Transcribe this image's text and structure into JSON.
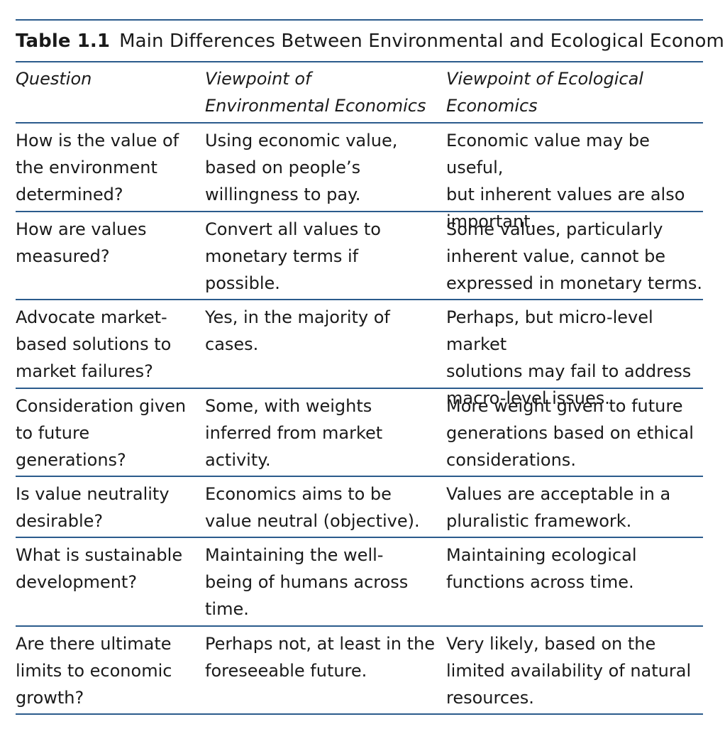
{
  "table": {
    "label": "Table 1.1",
    "title": "Main Differences Between Environmental and Ecological Economics",
    "headers": [
      "Question",
      "Viewpoint of\nEnvironmental Economics",
      "Viewpoint of Ecological\nEconomics"
    ],
    "rows": [
      {
        "question": "How is the value of\nthe environment\ndetermined?",
        "environmental": "Using economic value,\nbased on people’s\nwillingness to pay.",
        "ecological": "Economic value may be useful,\nbut inherent values are also\nimportant."
      },
      {
        "question": "How are values\nmeasured?",
        "environmental": "Convert all values to\nmonetary terms if\npossible.",
        "ecological": "Some values, particularly\ninherent value, cannot be\nexpressed in monetary terms."
      },
      {
        "question": "Advocate market-\nbased solutions to\nmarket failures?",
        "environmental": "Yes, in the majority of\ncases.",
        "ecological": "Perhaps, but micro-level market\nsolutions may fail to address\nmacro-level issues."
      },
      {
        "question": "Consideration given\nto future\ngenerations?",
        "environmental": "Some, with weights\ninferred from market\nactivity.",
        "ecological": "More weight given to future\ngenerations based on ethical\nconsiderations."
      },
      {
        "question": "Is value neutrality\ndesirable?",
        "environmental": "Economics aims to be\nvalue neutral (objective).",
        "ecological": "Values are acceptable in a\npluralistic framework."
      },
      {
        "question": "What is sustainable\ndevelopment?",
        "environmental": "Maintaining the well-\nbeing of humans across\ntime.",
        "ecological": "Maintaining ecological\nfunctions across time."
      },
      {
        "question": "Are there ultimate\nlimits to economic\ngrowth?",
        "environmental": "Perhaps not, at least in the\nforeseeable future.",
        "ecological": "Very likely, based on the\nlimited availability of natural\nresources."
      }
    ],
    "colors": {
      "rule": "#2b5b8c",
      "text": "#1a1a1a"
    }
  }
}
